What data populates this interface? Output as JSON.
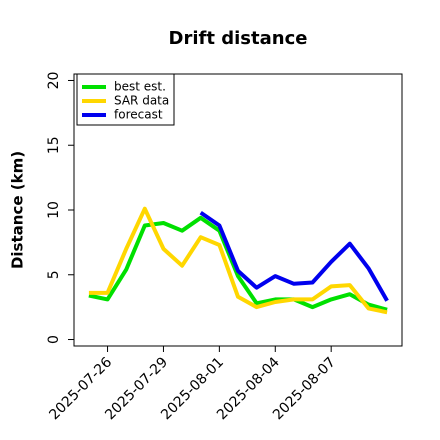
{
  "chart_data": {
    "type": "line",
    "title": "Drift distance",
    "xlabel": "",
    "ylabel": "Distance (km)",
    "ylim": [
      -0.5,
      20.5
    ],
    "yticks": [
      0,
      5,
      10,
      15,
      20
    ],
    "xticks": [
      "2025-07-26",
      "2025-07-29",
      "2025-08-01",
      "2025-08-04",
      "2025-08-07"
    ],
    "grid": false,
    "legend_position": "top-left",
    "series": [
      {
        "name": "best est.",
        "color": "#00e000",
        "x": [
          "2025-07-25",
          "2025-07-26",
          "2025-07-27",
          "2025-07-28",
          "2025-07-29",
          "2025-07-30",
          "2025-07-31",
          "2025-08-01",
          "2025-08-02",
          "2025-08-03",
          "2025-08-04",
          "2025-08-05",
          "2025-08-06",
          "2025-08-07",
          "2025-08-08",
          "2025-08-09",
          "2025-08-10"
        ],
        "y": [
          3.4,
          3.1,
          5.4,
          8.8,
          9.0,
          8.4,
          9.4,
          8.4,
          4.9,
          2.8,
          3.1,
          3.1,
          2.5,
          3.1,
          3.5,
          2.7,
          2.3
        ]
      },
      {
        "name": "SAR data",
        "color": "#ffd700",
        "x": [
          "2025-07-25",
          "2025-07-26",
          "2025-07-27",
          "2025-07-28",
          "2025-07-29",
          "2025-07-30",
          "2025-07-31",
          "2025-08-01",
          "2025-08-02",
          "2025-08-03",
          "2025-08-04",
          "2025-08-05",
          "2025-08-06",
          "2025-08-07",
          "2025-08-08",
          "2025-08-09",
          "2025-08-10"
        ],
        "y": [
          3.6,
          3.6,
          7.0,
          10.1,
          7.0,
          5.7,
          7.9,
          7.3,
          3.3,
          2.5,
          2.9,
          3.1,
          3.1,
          4.1,
          4.2,
          2.4,
          2.1
        ]
      },
      {
        "name": "forecast",
        "color": "#0000ee",
        "x": [
          "2025-07-31",
          "2025-08-01",
          "2025-08-02",
          "2025-08-03",
          "2025-08-04",
          "2025-08-05",
          "2025-08-06",
          "2025-08-07",
          "2025-08-08",
          "2025-08-09",
          "2025-08-10"
        ],
        "y": [
          9.8,
          8.8,
          5.3,
          4.0,
          4.9,
          4.3,
          4.4,
          6.0,
          7.4,
          5.5,
          3.0
        ]
      }
    ]
  }
}
